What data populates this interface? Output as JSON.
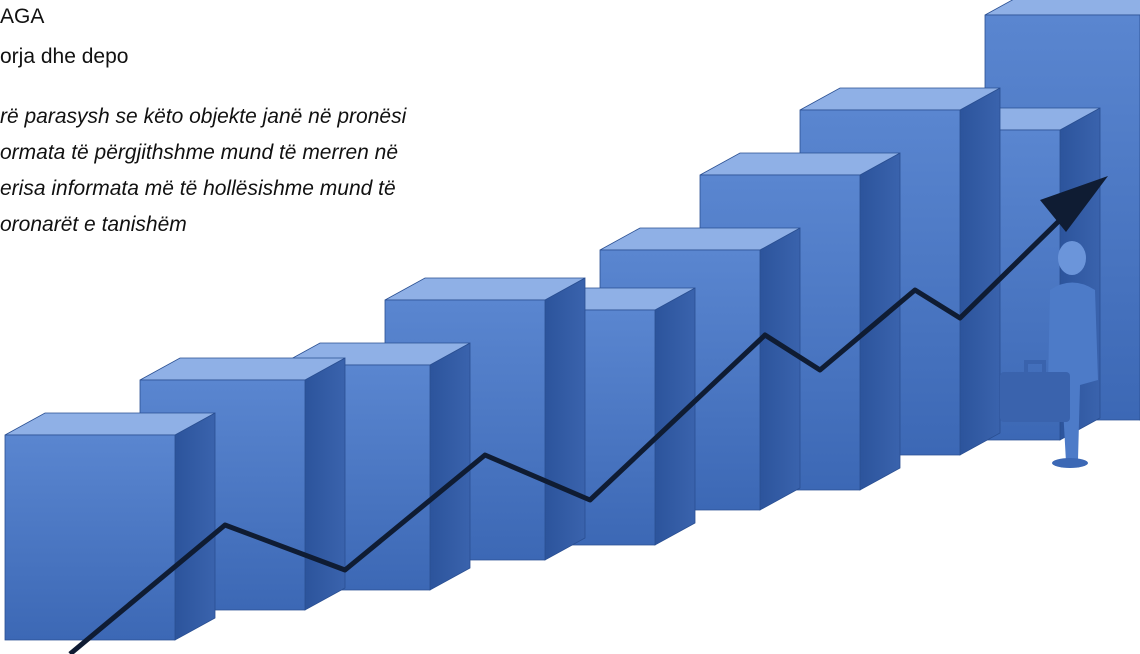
{
  "header": {
    "title": "AGA",
    "subtitle": "orja dhe depo"
  },
  "body": {
    "lines": [
      "rë parasysh se këto objekte janë në pronësi",
      "ormata të përgjithshme mund të merren në",
      "erisa informata më të hollësishme mund të",
      "oronarët e tanishëm"
    ]
  }
}
